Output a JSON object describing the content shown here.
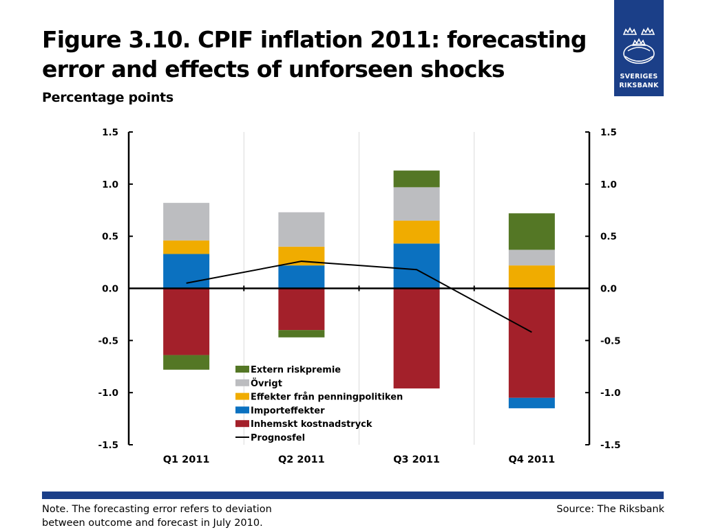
{
  "header": {
    "title_line1": "Figure 3.10. CPIF inflation 2011: forecasting",
    "title_line2": "error and effects of unforseen shocks",
    "subtitle": "Percentage points"
  },
  "logo": {
    "line1": "SVERIGES",
    "line2": "RIKSBANK",
    "icon": "riksbank-crowns-emblem",
    "color": "#1b3f88"
  },
  "footer": {
    "note_line1": "Note. The forecasting error refers to deviation",
    "note_line2": "between outcome and forecast in July 2010.",
    "source": "Source: The Riksbank"
  },
  "chart_data": {
    "type": "bar",
    "stacked": true,
    "categories": [
      "Q1 2011",
      "Q2 2011",
      "Q3 2011",
      "Q4 2011"
    ],
    "ylim": [
      -1.5,
      1.5
    ],
    "yticks": [
      "1.5",
      "1.0",
      "0.5",
      "0.0",
      "-0.5",
      "-1.0",
      "-1.5"
    ],
    "ytick_values": [
      1.5,
      1.0,
      0.5,
      0.0,
      -0.5,
      -1.0,
      -1.5
    ],
    "grid": true,
    "legend_position": "bottom-center",
    "series": [
      {
        "name": "Inhemskt kostnadstryck",
        "color": "#a3202a",
        "values": [
          -0.64,
          -0.4,
          -0.96,
          -1.05
        ]
      },
      {
        "name": "Importeffekter",
        "color": "#0b71c0",
        "values": [
          0.33,
          0.22,
          0.43,
          -0.1
        ]
      },
      {
        "name": "Effekter från penningpolitiken",
        "color": "#f0ac00",
        "values": [
          0.13,
          0.18,
          0.22,
          0.22
        ]
      },
      {
        "name": "Övrigt",
        "color": "#bcbdc0",
        "values": [
          0.36,
          0.33,
          0.32,
          0.15
        ]
      },
      {
        "name": "Extern riskpremie",
        "color": "#547725",
        "values": [
          -0.14,
          -0.07,
          0.16,
          0.35
        ]
      }
    ],
    "line": {
      "name": "Prognosfel",
      "color": "#000000",
      "values": [
        0.05,
        0.26,
        0.18,
        -0.42
      ]
    },
    "legend_order": [
      "Extern riskpremie",
      "Övrigt",
      "Effekter från penningpolitiken",
      "Importeffekter",
      "Inhemskt kostnadstryck",
      "Prognosfel"
    ]
  }
}
